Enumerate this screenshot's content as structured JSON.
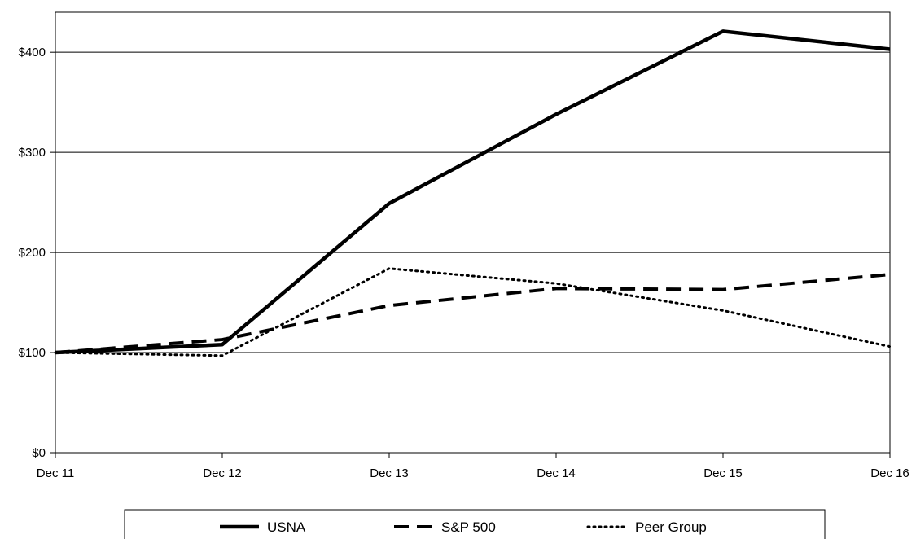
{
  "chart_data": {
    "type": "line",
    "title": "",
    "xlabel": "",
    "ylabel": "",
    "categories": [
      "Dec 11",
      "Dec 12",
      "Dec 13",
      "Dec 14",
      "Dec 15",
      "Dec 16"
    ],
    "yticks": [
      "$0",
      "$100",
      "$200",
      "$300",
      "$400"
    ],
    "ytick_values": [
      0,
      100,
      200,
      300,
      400
    ],
    "ylim": [
      0,
      440
    ],
    "grid": "horizontal",
    "legend_position": "bottom",
    "series": [
      {
        "name": "USNA",
        "style": "solid",
        "values": [
          100,
          108,
          249,
          338,
          421,
          403
        ]
      },
      {
        "name": "S&P 500",
        "style": "dashed",
        "values": [
          100,
          113,
          147,
          164,
          163,
          178
        ]
      },
      {
        "name": "Peer Group",
        "style": "dotted",
        "values": [
          100,
          97,
          184,
          169,
          142,
          106
        ]
      }
    ]
  }
}
